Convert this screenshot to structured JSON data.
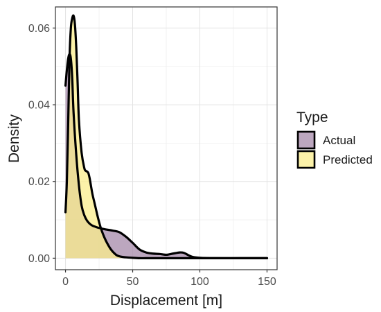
{
  "chart_data": {
    "type": "area",
    "subtype": "density",
    "title": "",
    "xlabel": "Displacement [m]",
    "ylabel": "Density",
    "xlim": [
      -7.5,
      157.5
    ],
    "ylim": [
      -0.003,
      0.0655
    ],
    "x_ticks": [
      0,
      50,
      100,
      150
    ],
    "x_tick_labels": [
      "0",
      "50",
      "100",
      "150"
    ],
    "y_ticks": [
      0,
      0.02,
      0.04,
      0.06
    ],
    "y_tick_labels": [
      "0.00",
      "0.02",
      "0.04",
      "0.06"
    ],
    "grid": true,
    "legend": {
      "title": "Type",
      "position": "right"
    },
    "series": [
      {
        "name": "Actual",
        "color": "#a589a9",
        "x": [
          0,
          1,
          2,
          3,
          4,
          5,
          6,
          8,
          10,
          12,
          14,
          16,
          18,
          20,
          23,
          26,
          30,
          35,
          40,
          45,
          50,
          55,
          60,
          65,
          70,
          75,
          80,
          85,
          88,
          92,
          95,
          100,
          110,
          130,
          150
        ],
        "y": [
          0.045,
          0.049,
          0.052,
          0.0532,
          0.052,
          0.047,
          0.038,
          0.027,
          0.019,
          0.0137,
          0.0112,
          0.0098,
          0.009,
          0.0085,
          0.0081,
          0.0078,
          0.0075,
          0.0072,
          0.0068,
          0.0056,
          0.004,
          0.0023,
          0.0015,
          0.0012,
          0.0011,
          0.0009,
          0.0012,
          0.0015,
          0.0014,
          0.0007,
          0.0003,
          0.0001,
          0.0,
          0.0,
          0.0
        ]
      },
      {
        "name": "Predicted",
        "color": "#fbee8c",
        "x": [
          0,
          1,
          2,
          3,
          4,
          5,
          6,
          7,
          8,
          9,
          10,
          12,
          14,
          15,
          16,
          17,
          18,
          19,
          20,
          22,
          24,
          26,
          28,
          30,
          32,
          34,
          36,
          38,
          40,
          43,
          46,
          50,
          55,
          60,
          70,
          80,
          90,
          100,
          120,
          150
        ],
        "y": [
          0.012,
          0.02,
          0.035,
          0.052,
          0.06,
          0.0625,
          0.0632,
          0.061,
          0.055,
          0.046,
          0.036,
          0.0275,
          0.0235,
          0.0228,
          0.0226,
          0.0222,
          0.0208,
          0.0188,
          0.0168,
          0.0138,
          0.0108,
          0.0082,
          0.0062,
          0.0046,
          0.0033,
          0.0022,
          0.0014,
          0.0008,
          0.0005,
          0.0003,
          0.0002,
          0.0001,
          0.0,
          0.0,
          0.0,
          0.0,
          0.0,
          0.0,
          0.0,
          0.0
        ]
      }
    ]
  }
}
